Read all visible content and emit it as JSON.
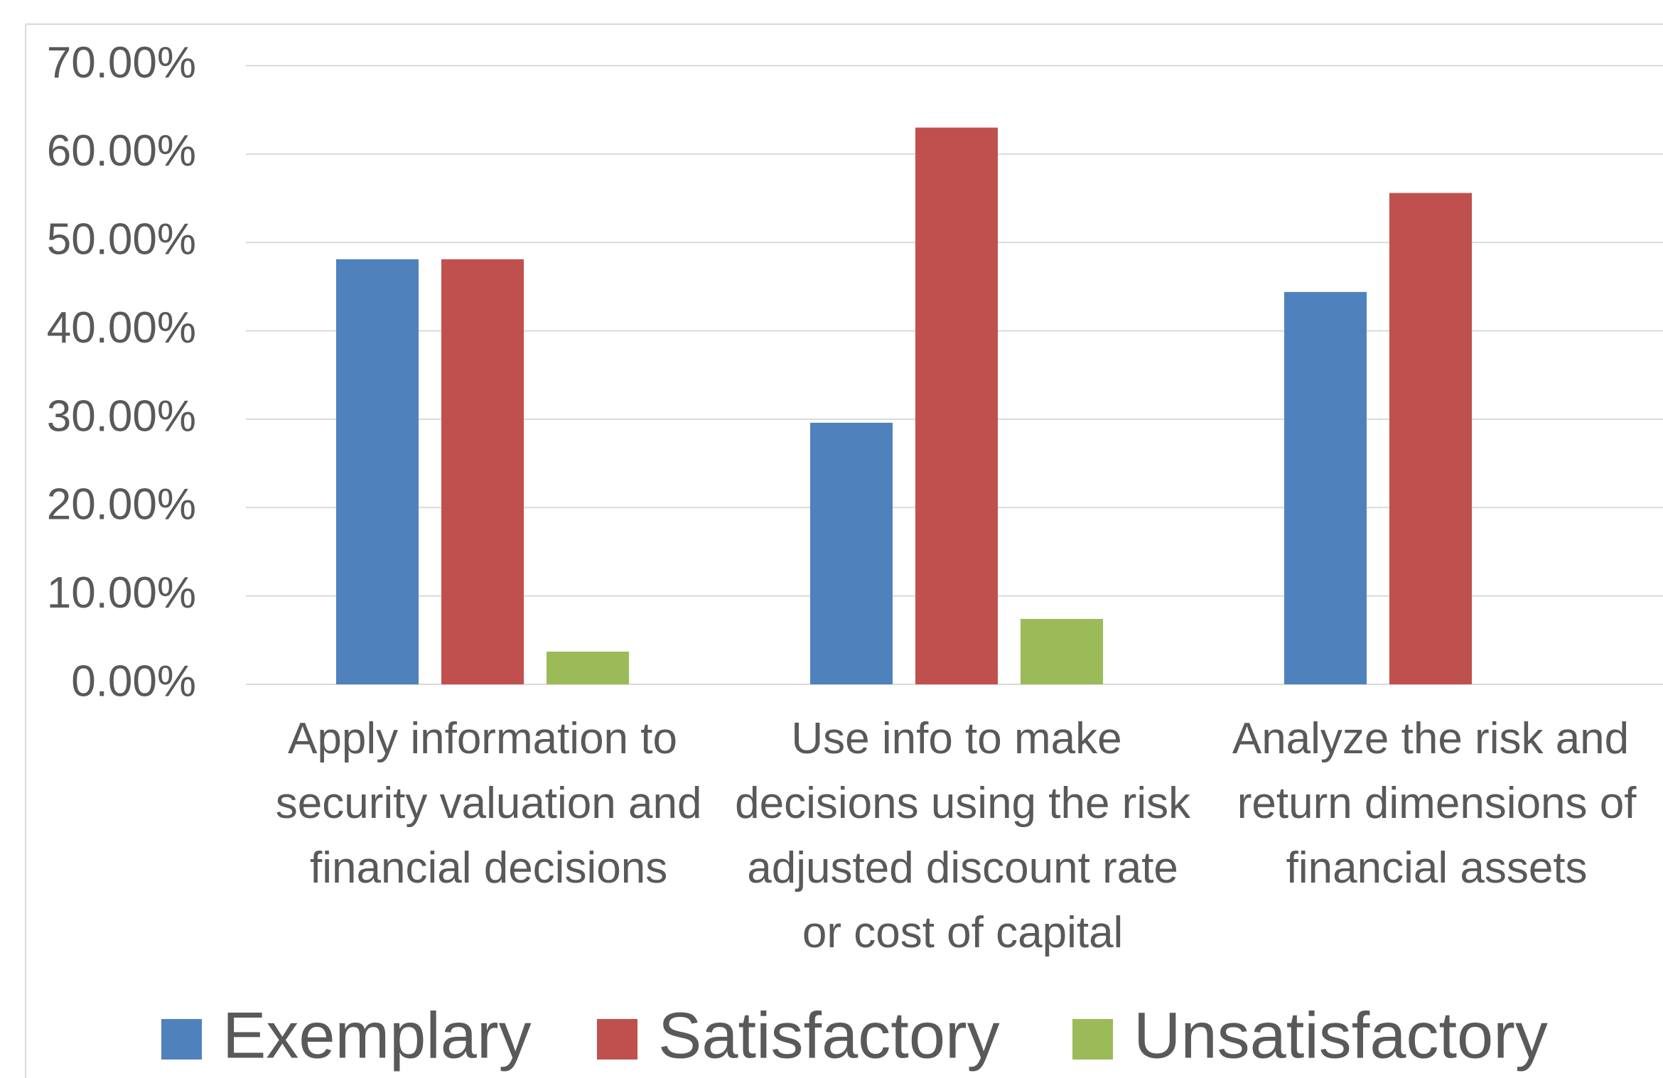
{
  "chart_data": {
    "type": "bar",
    "categories": [
      "Apply information to security valuation and financial decisions",
      "Use info to make decisions using the risk adjusted discount rate or cost of capital",
      "Analyze the risk and return dimensions of financial assets"
    ],
    "series": [
      {
        "name": "Exemplary",
        "color": "#4f81bd",
        "values": [
          48.1,
          29.6,
          44.4
        ]
      },
      {
        "name": "Satisfactory",
        "color": "#c0504d",
        "values": [
          48.1,
          63.0,
          55.6
        ]
      },
      {
        "name": "Unsatisfactory",
        "color": "#9bbb59",
        "values": [
          3.7,
          7.4,
          0
        ]
      }
    ],
    "ylim": [
      0,
      70
    ],
    "yticks": [
      {
        "value": 0,
        "label": "0.00%"
      },
      {
        "value": 10,
        "label": "10.00%"
      },
      {
        "value": 20,
        "label": "20.00%"
      },
      {
        "value": 30,
        "label": "30.00%"
      },
      {
        "value": 40,
        "label": "40.00%"
      },
      {
        "value": 50,
        "label": "50.00%"
      },
      {
        "value": 60,
        "label": "60.00%"
      },
      {
        "value": 70,
        "label": "70.00%"
      }
    ],
    "grid": true,
    "legend": "bottom"
  }
}
